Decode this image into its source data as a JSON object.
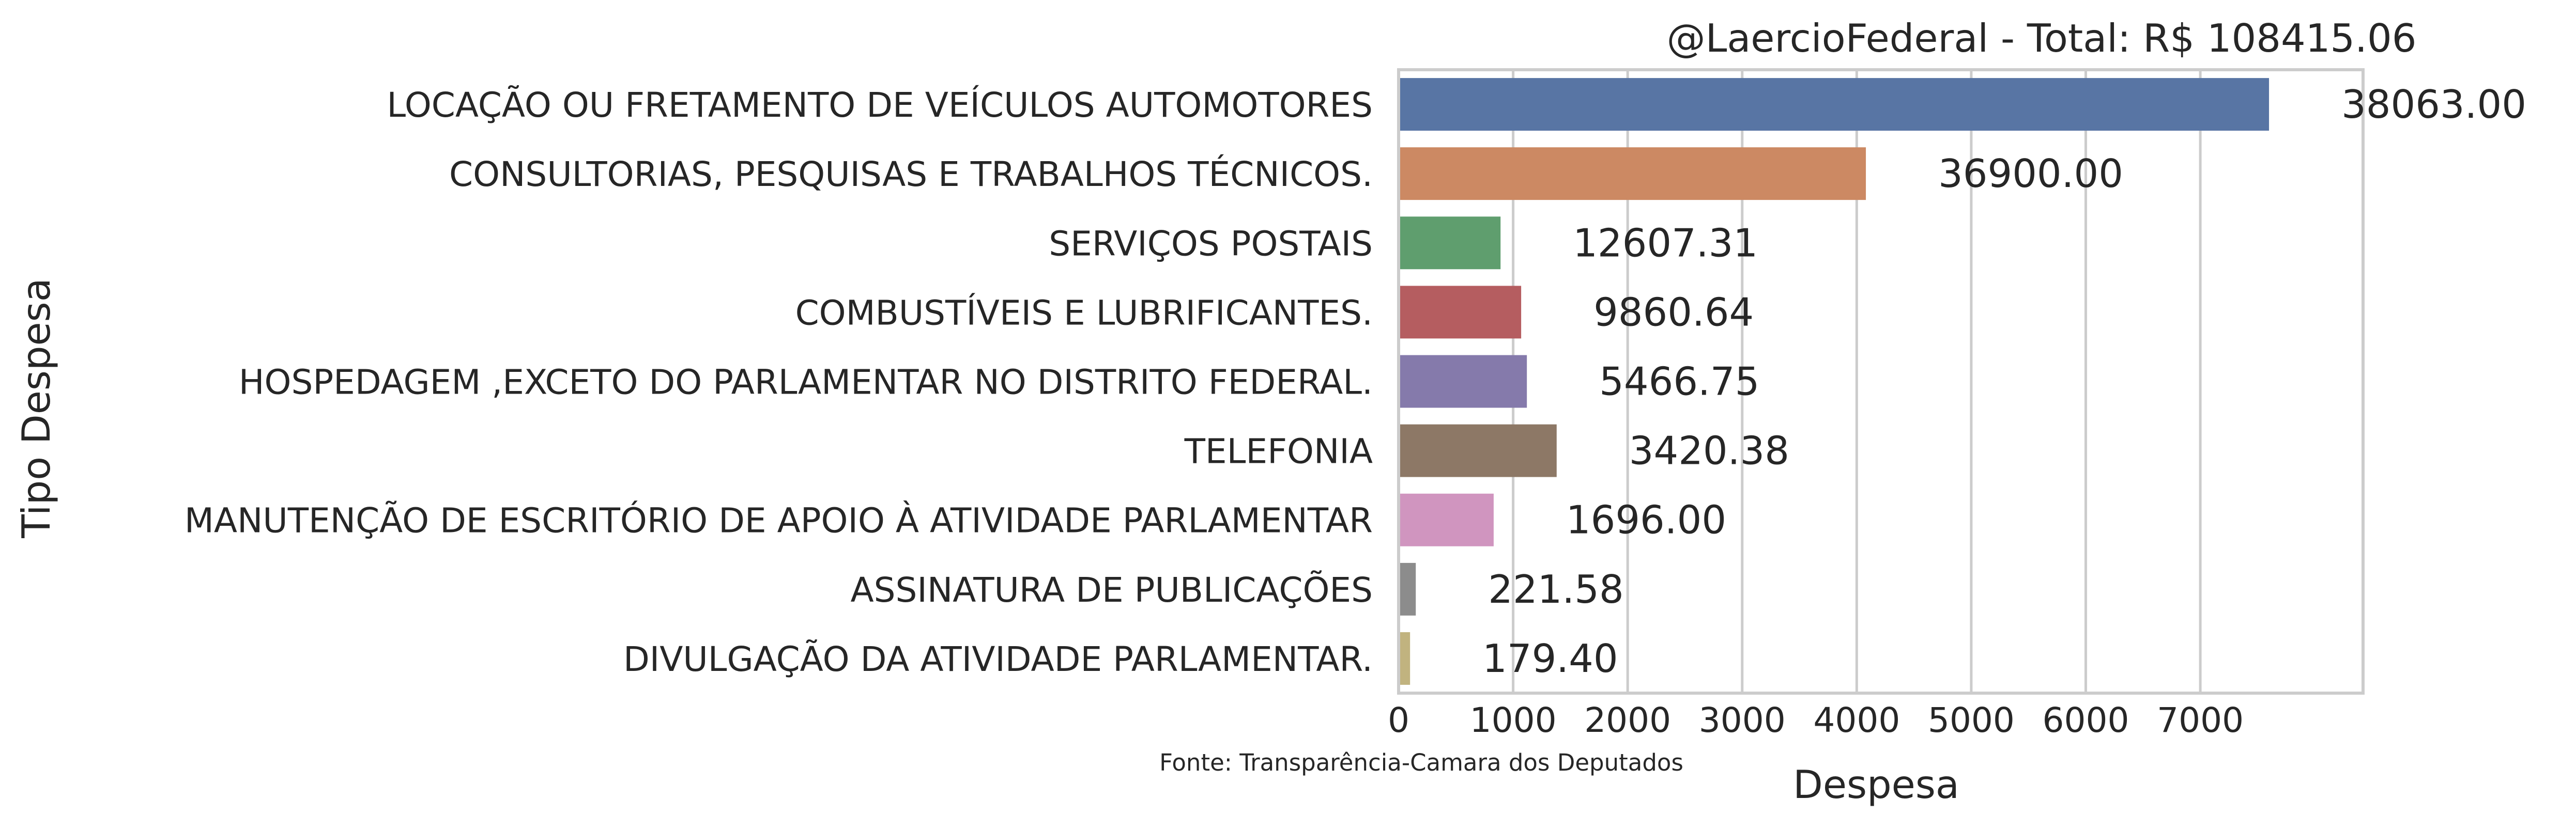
{
  "chart_data": {
    "type": "bar",
    "orientation": "horizontal",
    "title": "@LaercioFederal - Total: R$ 108415.06",
    "xlabel": "Despesa",
    "ylabel": "Tipo Despesa",
    "source_note": "Fonte: Transparência-Camara dos Deputados",
    "xlim": [
      0,
      8000
    ],
    "xticks": [
      0,
      1000,
      2000,
      3000,
      4000,
      5000,
      6000,
      7000
    ],
    "grid": true,
    "categories": [
      "LOCAÇÃO OU FRETAMENTO DE VEÍCULOS AUTOMOTORES",
      "CONSULTORIAS, PESQUISAS E TRABALHOS TÉCNICOS.",
      "SERVIÇOS POSTAIS",
      "COMBUSTÍVEIS E LUBRIFICANTES.",
      "HOSPEDAGEM ,EXCETO DO PARLAMENTAR NO DISTRITO FEDERAL.",
      "TELEFONIA",
      "MANUTENÇÃO DE ESCRITÓRIO DE APOIO À ATIVIDADE PARLAMENTAR",
      "ASSINATURA DE PUBLICAÇÕES",
      "DIVULGAÇÃO DA ATIVIDADE PARLAMENTAR."
    ],
    "values": [
      7600,
      4080,
      890,
      1070,
      1120,
      1380,
      830,
      150,
      100
    ],
    "value_labels": [
      "38063.00",
      "36900.00",
      "12607.31",
      "9860.64",
      "5466.75",
      "3420.38",
      "1696.00",
      "221.58",
      "179.40"
    ],
    "colors": [
      "#5875a4",
      "#cc8963",
      "#5f9e6e",
      "#b55d60",
      "#857aab",
      "#8d7866",
      "#d095bf",
      "#8c8c8c",
      "#c1b37f"
    ]
  }
}
